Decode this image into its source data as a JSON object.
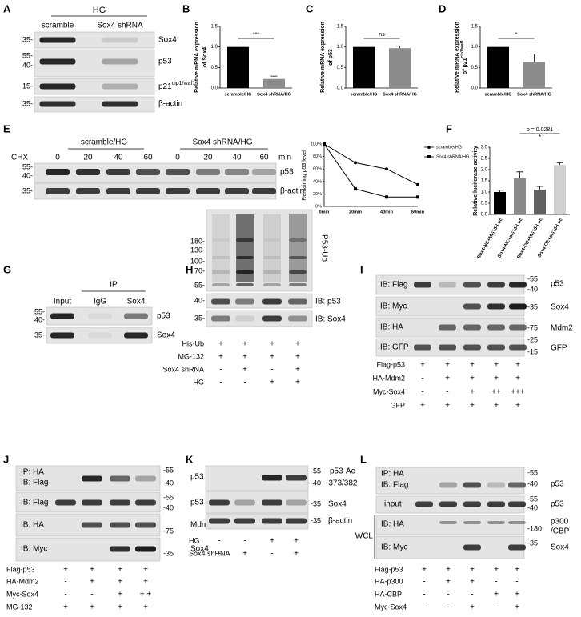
{
  "panel_labels": [
    "A",
    "B",
    "C",
    "D",
    "E",
    "F",
    "G",
    "H",
    "I",
    "J",
    "K",
    "L"
  ],
  "chart_data": [
    {
      "type": "bar",
      "ylabel": [
        "Relative mRNA expression",
        "of Sox4"
      ],
      "categories": [
        "scramble/HG",
        "Sox4 shRNA/HG"
      ],
      "values": [
        1.0,
        0.22
      ],
      "errors": [
        0,
        0.07
      ],
      "colors": [
        "#000000",
        "#8c8c8c"
      ],
      "ylim": [
        0,
        1.5
      ],
      "yticks": [
        {
          "value": 0,
          "label": "0.0"
        },
        0.5,
        {
          "value": 1,
          "label": "1.0"
        },
        1.5
      ],
      "annotation": "***"
    },
    {
      "type": "bar",
      "ylabel": [
        "Relative mRNA expression",
        "of p53"
      ],
      "categories": [
        "scramble/HG",
        "Sox4 shRNA/HG"
      ],
      "values": [
        1.0,
        0.97
      ],
      "errors": [
        0,
        0.05
      ],
      "colors": [
        "#000000",
        "#8c8c8c"
      ],
      "ylim": [
        0,
        1.5
      ],
      "yticks": [
        {
          "value": 0,
          "label": "0.0"
        },
        0.5,
        {
          "value": 1,
          "label": "1.0"
        },
        1.5
      ],
      "annotation": "ns"
    },
    {
      "type": "bar",
      "ylabel": [
        "Relative mRNA expression",
        "of p21"
      ],
      "ylabel_superscript": "cip1/waf1",
      "categories": [
        "scramble/HG",
        "Sox4 shRNA/HG"
      ],
      "values": [
        1.0,
        0.63
      ],
      "errors": [
        0,
        0.2
      ],
      "colors": [
        "#000000",
        "#8c8c8c"
      ],
      "ylim": [
        0,
        1.5
      ],
      "yticks": [
        {
          "value": 0,
          "label": "0.0"
        },
        0.5,
        {
          "value": 1,
          "label": "1.0"
        },
        1.5
      ],
      "annotation": "*"
    },
    {
      "type": "line",
      "ylabel": "Remaining p53 level",
      "categories": [
        "0min",
        "20min",
        "40min",
        "60min"
      ],
      "series": [
        {
          "name": "scramble/HG",
          "color": "#000000",
          "marker": "circle",
          "values": [
            100,
            70,
            60,
            35
          ]
        },
        {
          "name": "Sox4 shRNA/HG",
          "color": "#000000",
          "marker": "square",
          "values": [
            100,
            28,
            15,
            15
          ]
        }
      ],
      "ylim": [
        0,
        100
      ],
      "yticks": [
        {
          "value": 0,
          "label": "0%"
        },
        {
          "value": 20,
          "label": "20%"
        },
        {
          "value": 40,
          "label": "40%"
        },
        {
          "value": 60,
          "label": "60%"
        },
        {
          "value": 80,
          "label": "80%"
        },
        {
          "value": 100,
          "label": "100%"
        }
      ]
    },
    {
      "type": "bar",
      "ylabel": [
        "Relative luciferase activity"
      ],
      "categories": [
        "Sox4-NC+MG15-Luc",
        "Sox4-NC+pG13-Luc",
        "Sox4-OE+MG15-Luc",
        "Sox4 OE+pG13-Luc"
      ],
      "values": [
        1.0,
        1.62,
        1.1,
        2.2
      ],
      "errors": [
        0.08,
        0.28,
        0.15,
        0.1
      ],
      "colors": [
        "#000000",
        "#8a8a8a",
        "#606060",
        "#d0d0d0"
      ],
      "ylim": [
        0,
        3
      ],
      "yticks": [
        {
          "value": 0,
          "label": "0.0"
        },
        0.5,
        {
          "value": 1,
          "label": "1.0"
        },
        1.5,
        {
          "value": 2,
          "label": "2.0"
        },
        2.5,
        {
          "value": 3,
          "label": "3.0"
        }
      ],
      "annotation": "p = 0.0281",
      "annotation_mark": "*"
    }
  ],
  "blots": {
    "A": {
      "group": "HG",
      "lanes": [
        "scramble",
        "Sox4 shRNA"
      ],
      "markers": [
        "35-",
        "55-",
        "40-",
        "15-",
        "35-"
      ],
      "proteins": [
        "Sox4",
        "p53",
        "p21",
        "β-actin"
      ],
      "superscript": "cip1/waf1"
    },
    "E": {
      "treatment": "CHX",
      "groups": [
        "scramble/HG",
        "Sox4 shRNA/HG"
      ],
      "times": [
        "0",
        "20",
        "40",
        "60",
        "0",
        "20",
        "40",
        "60"
      ],
      "unit": "min",
      "markers": [
        "55-",
        "40-",
        "35-"
      ],
      "proteins": [
        "p53",
        "β-actin"
      ]
    },
    "G": {
      "group": "IP",
      "lanes": [
        "Input",
        "IgG",
        "Sox4"
      ],
      "markers": [
        "55-",
        "40-",
        "35-"
      ],
      "proteins": [
        "p53",
        "Sox4"
      ]
    },
    "H": {
      "markers": [
        "180-",
        "130-",
        "100-",
        "70-",
        "55-",
        "40-",
        "35-"
      ],
      "ub_label": "P53-Ub",
      "blot_labels": [
        "IB: p53",
        "IB: Sox4"
      ],
      "rows": [
        {
          "name": "His-Ub",
          "values": [
            "+",
            "+",
            "+",
            "+"
          ]
        },
        {
          "name": "MG-132",
          "values": [
            "+",
            "+",
            "+",
            "+"
          ]
        },
        {
          "name": "Sox4 shRNA",
          "values": [
            "-",
            "+",
            "-",
            "+"
          ]
        },
        {
          "name": "HG",
          "values": [
            "-",
            "-",
            "+",
            "+"
          ]
        }
      ]
    },
    "I": {
      "blot_labels": [
        "IB: Flag",
        "IB: Myc",
        "IB: HA",
        "IB: GFP"
      ],
      "markers": [
        "-55",
        "-40",
        "-35",
        "-75",
        "-25",
        "-15"
      ],
      "proteins": [
        "p53",
        "Sox4",
        "Mdm2",
        "GFP"
      ],
      "rows": [
        {
          "name": "Flag-p53",
          "values": [
            "+",
            "+",
            "+",
            "+",
            "+"
          ]
        },
        {
          "name": "HA-Mdm2",
          "values": [
            "-",
            "+",
            "+",
            "+",
            "+"
          ]
        },
        {
          "name": "Myc-Sox4",
          "values": [
            "-",
            "-",
            "+",
            "++",
            "+++"
          ]
        },
        {
          "name": "GFP",
          "values": [
            "+",
            "+",
            "+",
            "+",
            "+"
          ]
        }
      ]
    },
    "J": {
      "blot_labels": [
        "IP: HA",
        "IB: Flag",
        "IB: Flag",
        "IB: HA",
        "IB: Myc"
      ],
      "markers": [
        "-55",
        "-40",
        "-55",
        "-40",
        "-75",
        "-35"
      ],
      "proteins": [
        "p53",
        "p53",
        "Mdm2",
        "Sox4"
      ],
      "rows": [
        {
          "name": "Flag-p53",
          "values": [
            "+",
            "+",
            "+",
            "+"
          ]
        },
        {
          "name": "HA-Mdm2",
          "values": [
            "-",
            "+",
            "+",
            "+"
          ]
        },
        {
          "name": "Myc-Sox4",
          "values": [
            "-",
            "-",
            "+",
            "+ +"
          ]
        },
        {
          "name": "MG-132",
          "values": [
            "+",
            "+",
            "+",
            "+"
          ]
        }
      ]
    },
    "K": {
      "markers": [
        "-55",
        "-40",
        "-35",
        "-35"
      ],
      "proteins": [
        "p53-Ac",
        "-373/382",
        "Sox4",
        "β-actin"
      ],
      "rows": [
        {
          "name": "HG",
          "values": [
            "-",
            "-",
            "+",
            "+"
          ]
        },
        {
          "name": "Sox4 shRNA",
          "values": [
            "-",
            "+",
            "-",
            "+"
          ]
        }
      ]
    },
    "L": {
      "blot_labels": [
        "IP: HA",
        "IB: Flag",
        "input",
        "WCL",
        "IB: HA",
        "IB: Myc"
      ],
      "markers": [
        "-55",
        "-40",
        "-55",
        "-40",
        "-180",
        "-35"
      ],
      "proteins": [
        "p53",
        "p53",
        "p300",
        "/CBP",
        "Sox4"
      ],
      "rows": [
        {
          "name": "Flag-p53",
          "values": [
            "+",
            "+",
            "+",
            "+",
            "+"
          ]
        },
        {
          "name": "HA-p300",
          "values": [
            "-",
            "+",
            "+",
            "-",
            "-"
          ]
        },
        {
          "name": "HA-CBP",
          "values": [
            "-",
            "-",
            "-",
            "+",
            "+"
          ]
        },
        {
          "name": "Myc-Sox4",
          "values": [
            "-",
            "-",
            "+",
            "-",
            "+"
          ]
        }
      ]
    }
  }
}
